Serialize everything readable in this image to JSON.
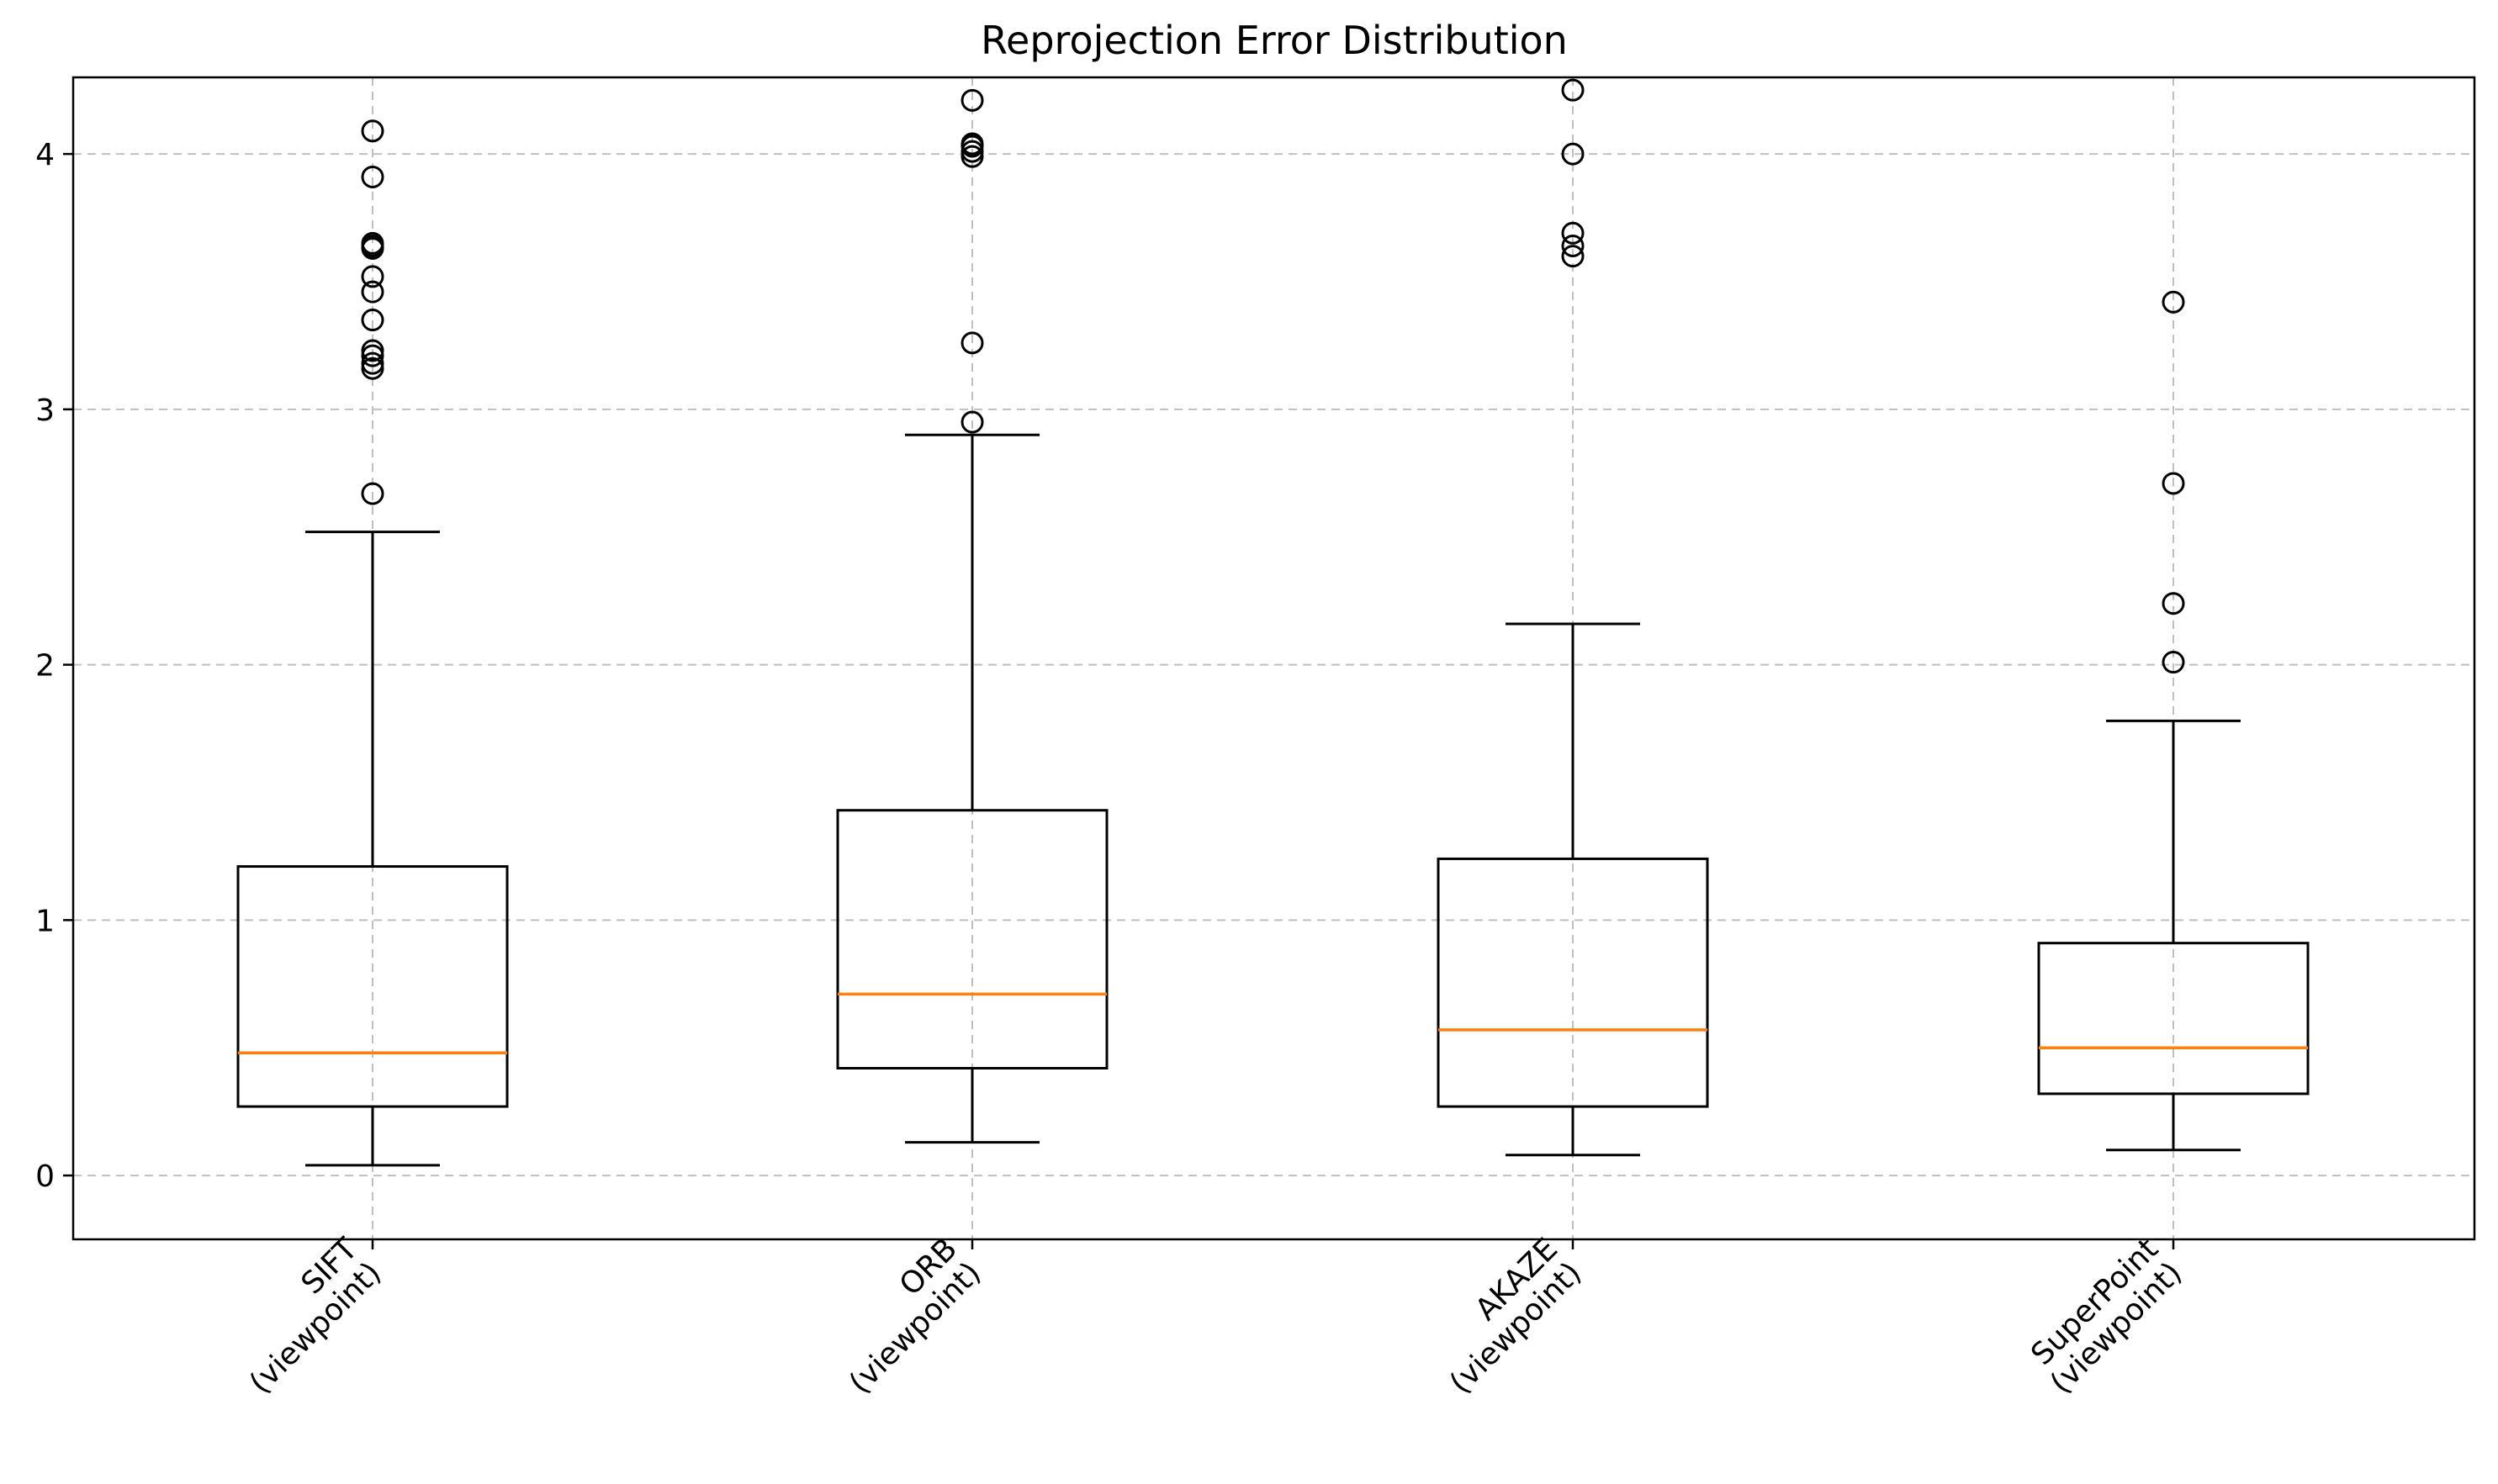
{
  "chart_data": {
    "type": "box",
    "title": "Reprojection Error Distribution",
    "xlabel": "",
    "ylabel": "",
    "ylim": [
      -0.25,
      4.3
    ],
    "yticks": [
      0,
      1,
      2,
      3,
      4
    ],
    "grid": true,
    "median_color": "#ff7f0e",
    "box_color": "#000000",
    "categories": [
      [
        "SIFT",
        "(viewpoint)"
      ],
      [
        "ORB",
        "(viewpoint)"
      ],
      [
        "AKAZE",
        "(viewpoint)"
      ],
      [
        "SuperPoint",
        "(viewpoint)"
      ]
    ],
    "series": [
      {
        "whisker_low": 0.04,
        "q1": 0.27,
        "median": 0.48,
        "q3": 1.21,
        "whisker_high": 2.52,
        "fliers": [
          2.67,
          3.16,
          3.18,
          3.21,
          3.23,
          3.35,
          3.46,
          3.52,
          3.63,
          3.64,
          3.65,
          3.91,
          4.09
        ]
      },
      {
        "whisker_low": 0.13,
        "q1": 0.42,
        "median": 0.71,
        "q3": 1.43,
        "whisker_high": 2.9,
        "fliers": [
          2.95,
          3.26,
          3.99,
          4.01,
          4.03,
          4.04,
          4.21
        ]
      },
      {
        "whisker_low": 0.08,
        "q1": 0.27,
        "median": 0.57,
        "q3": 1.24,
        "whisker_high": 2.16,
        "fliers": [
          3.6,
          3.64,
          3.69,
          4.0,
          4.25
        ]
      },
      {
        "whisker_low": 0.1,
        "q1": 0.32,
        "median": 0.5,
        "q3": 0.91,
        "whisker_high": 1.78,
        "fliers": [
          2.01,
          2.24,
          2.71,
          3.42
        ]
      }
    ]
  }
}
